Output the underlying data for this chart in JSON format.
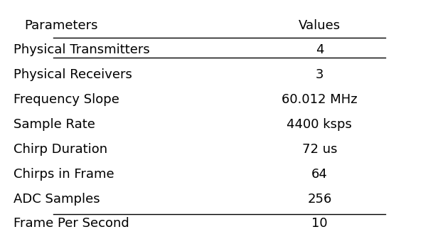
{
  "parameters": [
    "Physical Transmitters",
    "Physical Receivers",
    "Frequency Slope",
    "Sample Rate",
    "Chirp Duration",
    "Chirps in Frame",
    "ADC Samples",
    "Frame Per Second"
  ],
  "values": [
    "4",
    "3",
    "60.012 MHz",
    "4400 ksps",
    "72 us",
    "64",
    "256",
    "10"
  ],
  "col_headers": [
    "Parameters",
    "Values"
  ],
  "bg_color": "#ffffff",
  "text_color": "#000000",
  "font_size": 13,
  "header_font_size": 13
}
